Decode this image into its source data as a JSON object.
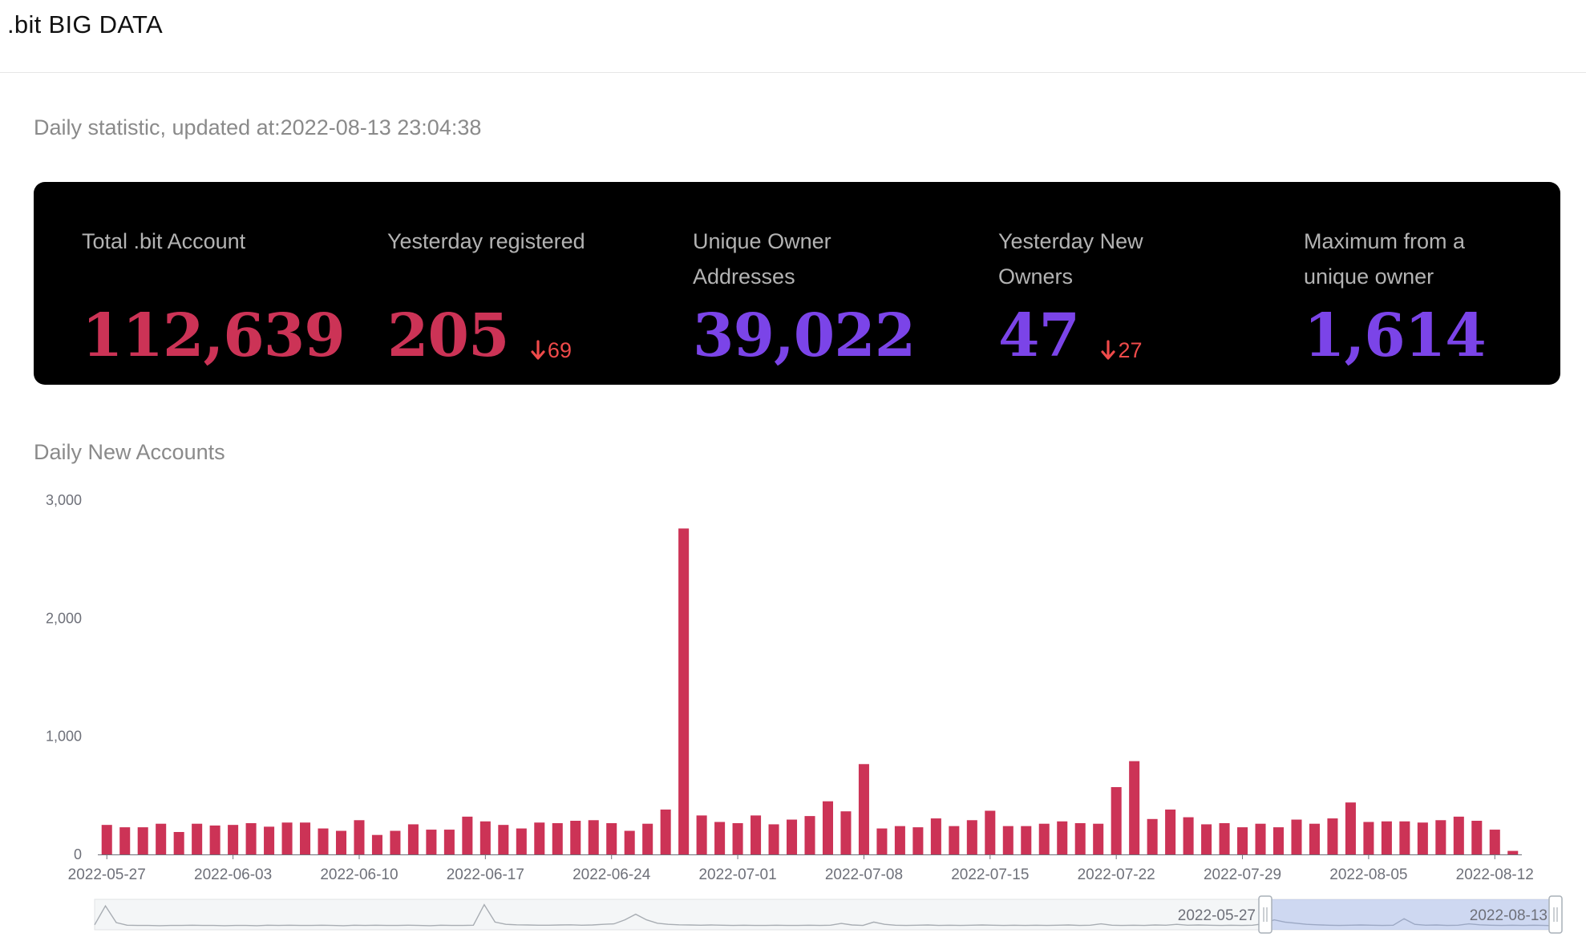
{
  "header": {
    "title": ".bit BIG DATA"
  },
  "updated_text": "Daily statistic, updated at:2022-08-13 23:04:38",
  "stats": [
    {
      "label": "Total .bit Account",
      "value": "112,639",
      "delta": "",
      "color": "#cc3356"
    },
    {
      "label": "Yesterday registered",
      "value": "205",
      "delta": "69",
      "color": "#cc3356"
    },
    {
      "label": "Unique Owner Addresses",
      "value": "39,022",
      "delta": "",
      "color": "#7b44e8"
    },
    {
      "label": "Yesterday New Owners",
      "value": "47",
      "delta": "27",
      "color": "#7b44e8"
    },
    {
      "label": "Maximum from a unique owner",
      "value": "1,614",
      "delta": "",
      "color": "#7b44e8"
    }
  ],
  "delta_icon": "arrow-down-icon",
  "chart_title": "Daily New Accounts",
  "chart_data": {
    "type": "bar",
    "title": "Daily New Accounts",
    "xlabel": "",
    "ylabel": "",
    "ylim": [
      0,
      3000
    ],
    "yticks": [
      "0",
      "1,000",
      "2,000",
      "3,000"
    ],
    "grid": false,
    "bar_color": "#cc3356",
    "categories": [
      "2022-05-27",
      "2022-05-28",
      "2022-05-29",
      "2022-05-30",
      "2022-05-31",
      "2022-06-01",
      "2022-06-02",
      "2022-06-03",
      "2022-06-04",
      "2022-06-05",
      "2022-06-06",
      "2022-06-07",
      "2022-06-08",
      "2022-06-09",
      "2022-06-10",
      "2022-06-11",
      "2022-06-12",
      "2022-06-13",
      "2022-06-14",
      "2022-06-15",
      "2022-06-16",
      "2022-06-17",
      "2022-06-18",
      "2022-06-19",
      "2022-06-20",
      "2022-06-21",
      "2022-06-22",
      "2022-06-23",
      "2022-06-24",
      "2022-06-25",
      "2022-06-26",
      "2022-06-27",
      "2022-06-28",
      "2022-06-29",
      "2022-06-30",
      "2022-07-01",
      "2022-07-02",
      "2022-07-03",
      "2022-07-04",
      "2022-07-05",
      "2022-07-06",
      "2022-07-07",
      "2022-07-08",
      "2022-07-09",
      "2022-07-10",
      "2022-07-11",
      "2022-07-12",
      "2022-07-13",
      "2022-07-14",
      "2022-07-15",
      "2022-07-16",
      "2022-07-17",
      "2022-07-18",
      "2022-07-19",
      "2022-07-20",
      "2022-07-21",
      "2022-07-22",
      "2022-07-23",
      "2022-07-24",
      "2022-07-25",
      "2022-07-26",
      "2022-07-27",
      "2022-07-28",
      "2022-07-29",
      "2022-07-30",
      "2022-07-31",
      "2022-08-01",
      "2022-08-02",
      "2022-08-03",
      "2022-08-04",
      "2022-08-05",
      "2022-08-06",
      "2022-08-07",
      "2022-08-08",
      "2022-08-09",
      "2022-08-10",
      "2022-08-11",
      "2022-08-12",
      "2022-08-13"
    ],
    "values": [
      250,
      230,
      230,
      260,
      190,
      260,
      245,
      250,
      265,
      235,
      270,
      270,
      220,
      200,
      290,
      165,
      200,
      255,
      210,
      210,
      320,
      280,
      250,
      220,
      270,
      265,
      285,
      290,
      265,
      200,
      260,
      380,
      2760,
      330,
      275,
      265,
      330,
      255,
      295,
      325,
      450,
      365,
      765,
      220,
      240,
      230,
      305,
      240,
      290,
      370,
      240,
      240,
      260,
      280,
      265,
      260,
      570,
      790,
      300,
      380,
      315,
      255,
      265,
      230,
      260,
      230,
      295,
      260,
      305,
      440,
      275,
      280,
      280,
      270,
      290,
      320,
      285,
      210,
      30
    ],
    "xticks": [
      "2022-05-27",
      "2022-06-03",
      "2022-06-10",
      "2022-06-17",
      "2022-06-24",
      "2022-07-01",
      "2022-07-08",
      "2022-07-15",
      "2022-07-22",
      "2022-07-29",
      "2022-08-05",
      "2022-08-12"
    ],
    "zoom": {
      "start_label": "2022-05-27",
      "end_label": "2022-08-13",
      "overview": [
        0.08,
        0.92,
        0.18,
        0.06,
        0.05,
        0.05,
        0.04,
        0.05,
        0.05,
        0.06,
        0.05,
        0.05,
        0.04,
        0.05,
        0.05,
        0.04,
        0.06,
        0.05,
        0.06,
        0.05,
        0.05,
        0.06,
        0.05,
        0.04,
        0.06,
        0.05,
        0.06,
        0.05,
        0.05,
        0.06,
        0.05,
        0.04,
        0.06,
        0.05,
        0.05,
        0.06,
        0.98,
        0.2,
        0.1,
        0.08,
        0.07,
        0.06,
        0.06,
        0.07,
        0.08,
        0.06,
        0.07,
        0.1,
        0.12,
        0.3,
        0.55,
        0.3,
        0.15,
        0.1,
        0.08,
        0.07,
        0.06,
        0.07,
        0.06,
        0.05,
        0.06,
        0.05,
        0.05,
        0.06,
        0.05,
        0.05,
        0.06,
        0.05,
        0.06,
        0.14,
        0.07,
        0.05,
        0.2,
        0.1,
        0.06,
        0.05,
        0.06,
        0.07,
        0.05,
        0.06,
        0.05,
        0.06,
        0.07,
        0.06,
        0.05,
        0.06,
        0.05,
        0.06,
        0.05,
        0.06,
        0.07,
        0.05,
        0.06,
        0.12,
        0.06,
        0.05,
        0.06,
        0.05,
        0.07,
        0.06,
        0.1,
        0.06,
        0.07,
        0.06,
        0.05,
        0.06,
        0.05,
        0.06,
        0.12,
        0.3,
        0.2,
        0.15,
        0.1,
        0.08,
        0.06,
        0.05,
        0.06,
        0.07,
        0.06,
        0.05,
        0.06,
        0.35,
        0.1,
        0.06,
        0.07,
        0.05,
        0.06,
        0.12,
        0.08,
        0.06,
        0.05,
        0.06,
        0.05,
        0.06,
        0.05,
        0.04
      ]
    }
  }
}
